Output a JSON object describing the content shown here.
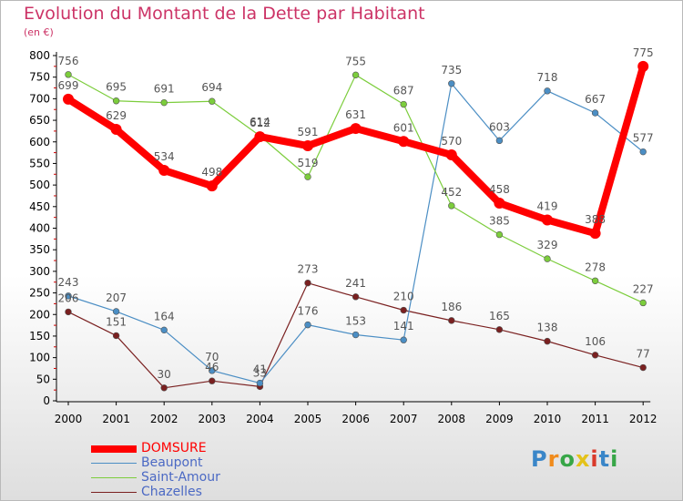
{
  "header": {
    "title": "Evolution du Montant de la Dette par Habitant",
    "subtitle": "(en €)"
  },
  "logo": {
    "text": "Proxiti",
    "colors": [
      "#3a86c8",
      "#f08b1c",
      "#37a647",
      "#e4c21a",
      "#d93a2b",
      "#3a86c8",
      "#37a647"
    ]
  },
  "chart_data": {
    "type": "line",
    "categories": [
      "2000",
      "2001",
      "2002",
      "2003",
      "2004",
      "2005",
      "2006",
      "2007",
      "2008",
      "2009",
      "2010",
      "2011",
      "2012"
    ],
    "ylim": [
      0,
      800
    ],
    "y_ticks": [
      0,
      50,
      100,
      150,
      200,
      250,
      300,
      350,
      400,
      450,
      500,
      550,
      600,
      650,
      700,
      750,
      800
    ],
    "grid": false,
    "legend_position": "bottom-left",
    "series": [
      {
        "name": "DOMSURE",
        "color": "#ff0000",
        "values": [
          699,
          629,
          534,
          498,
          612,
          591,
          631,
          601,
          570,
          458,
          419,
          388,
          775
        ]
      },
      {
        "name": "Beaupont",
        "color": "#4b8ec4",
        "values": [
          243,
          207,
          164,
          70,
          41,
          176,
          153,
          141,
          735,
          603,
          718,
          667,
          577
        ]
      },
      {
        "name": "Saint-Amour",
        "color": "#7ccd3c",
        "values": [
          756,
          695,
          691,
          694,
          614,
          519,
          755,
          687,
          452,
          385,
          329,
          278,
          227
        ]
      },
      {
        "name": "Chazelles",
        "color": "#7a2020",
        "values": [
          206,
          151,
          30,
          46,
          33,
          273,
          241,
          210,
          186,
          165,
          138,
          106,
          77
        ]
      }
    ]
  }
}
